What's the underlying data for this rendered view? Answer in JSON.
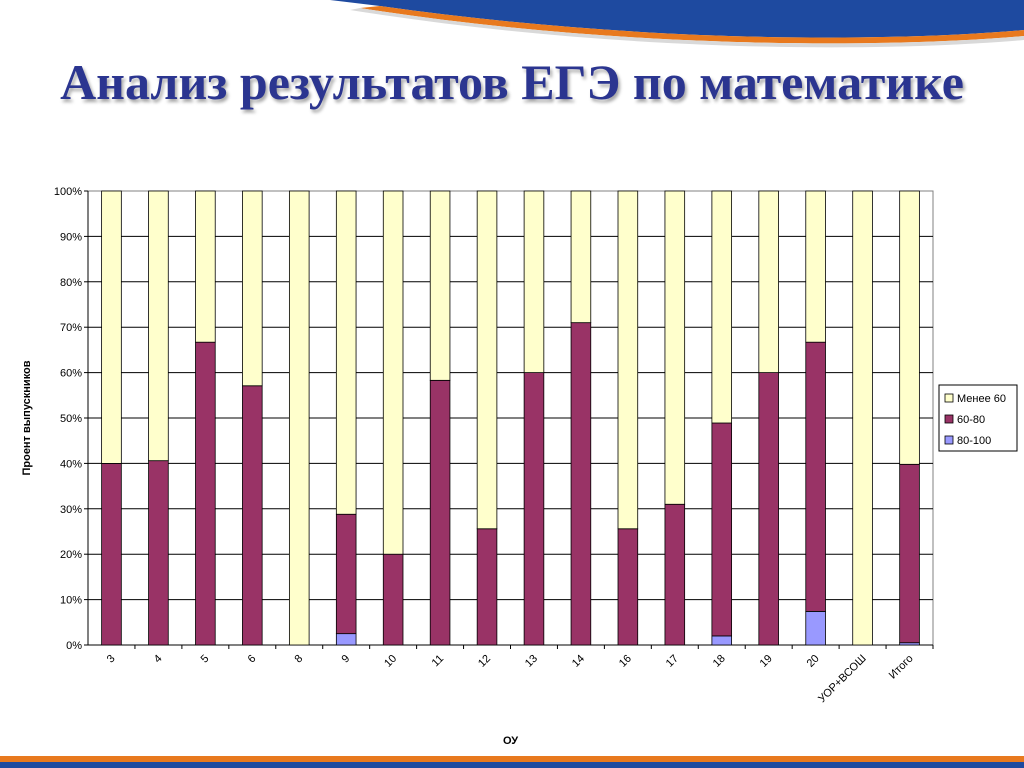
{
  "page": {
    "title": "Анализ результатов ЕГЭ по математике"
  },
  "chart_data": {
    "type": "bar",
    "stacked": "percent",
    "title": "",
    "xlabel": "ОУ",
    "ylabel": "Проент выпускников",
    "ylim": [
      0,
      100
    ],
    "yticks": [
      "0%",
      "10%",
      "20%",
      "30%",
      "40%",
      "50%",
      "60%",
      "70%",
      "80%",
      "90%",
      "100%"
    ],
    "grid": true,
    "legend_position": "right",
    "categories": [
      "3",
      "4",
      "5",
      "6",
      "8",
      "9",
      "10",
      "11",
      "12",
      "13",
      "14",
      "16",
      "17",
      "18",
      "19",
      "20",
      "УОР+ВСОШ",
      "Итого"
    ],
    "series": [
      {
        "name": "80-100",
        "color": "#9999ff",
        "values": [
          0,
          0,
          0,
          0,
          0,
          2.5,
          0,
          0,
          0,
          0,
          0,
          0,
          0,
          2.0,
          0,
          7.4,
          0,
          0.5
        ]
      },
      {
        "name": "60-80",
        "color": "#993366",
        "values": [
          40.0,
          40.6,
          66.7,
          57.1,
          0,
          26.3,
          20.0,
          58.3,
          25.6,
          60.0,
          71.0,
          25.6,
          31.0,
          46.9,
          60.0,
          59.3,
          0,
          39.3
        ]
      },
      {
        "name": "Менее 60",
        "color": "#ffffcc",
        "values": [
          60.0,
          59.4,
          33.3,
          42.9,
          100.0,
          71.2,
          80.0,
          41.7,
          74.4,
          40.0,
          29.0,
          74.4,
          69.0,
          51.1,
          40.0,
          33.3,
          100.0,
          60.2
        ]
      }
    ],
    "legend_order": [
      "Менее 60",
      "60-80",
      "80-100"
    ]
  }
}
